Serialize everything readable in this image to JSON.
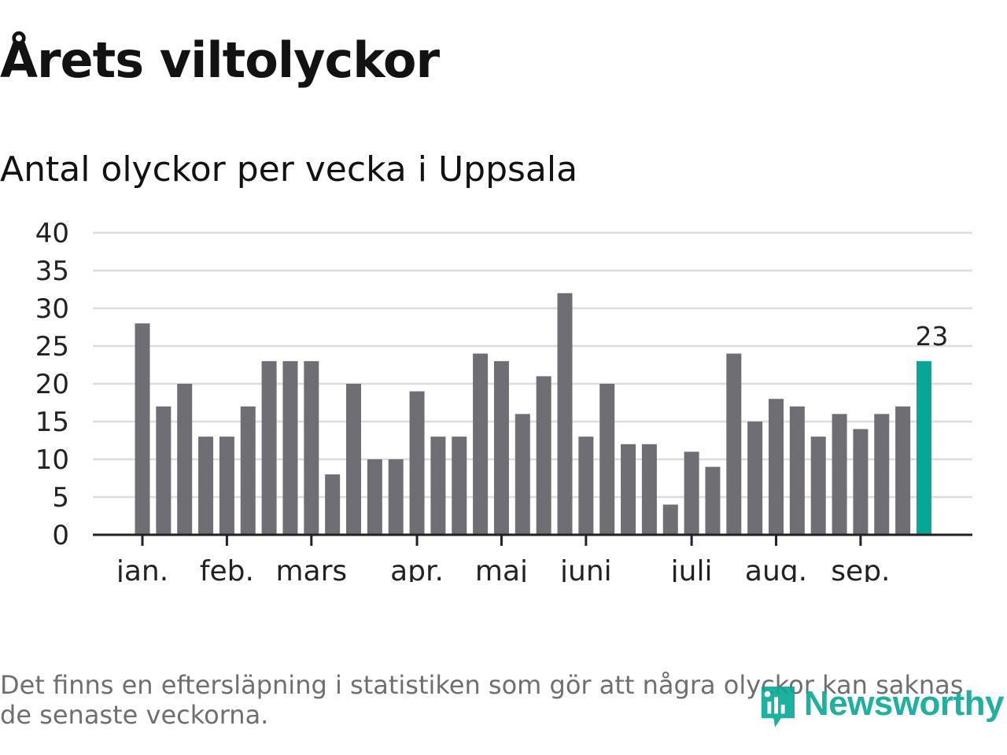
{
  "title": "Årets viltolyckor",
  "subtitle": "Antal olyckor per vecka i Uppsala",
  "footnote": "Det finns en eftersläpning i statistiken som gör att några olyckor kan saknas de senaste veckorna.",
  "logo_text": "Newsworthy",
  "colors": {
    "bar": "#6f6e74",
    "highlight": "#06a796",
    "grid": "#dcdcdc",
    "axis": "#222222",
    "text": "#222222"
  },
  "chart_data": {
    "type": "bar",
    "title": "Årets viltolyckor",
    "subtitle": "Antal olyckor per vecka i Uppsala",
    "xlabel": "",
    "ylabel": "",
    "ylim": [
      0,
      40
    ],
    "yticks": [
      0,
      5,
      10,
      15,
      20,
      25,
      30,
      35,
      40
    ],
    "grid": true,
    "values": [
      28,
      17,
      20,
      13,
      13,
      17,
      23,
      23,
      23,
      8,
      20,
      10,
      10,
      19,
      13,
      13,
      24,
      23,
      16,
      21,
      32,
      13,
      20,
      12,
      12,
      4,
      11,
      9,
      24,
      15,
      18,
      17,
      13,
      16,
      14,
      16,
      17,
      23
    ],
    "highlight_index": 37,
    "highlight_label": "23",
    "month_labels": [
      {
        "label": "jan.",
        "bar_index": 0
      },
      {
        "label": "feb.",
        "bar_index": 4
      },
      {
        "label": "mars",
        "bar_index": 8
      },
      {
        "label": "apr.",
        "bar_index": 13
      },
      {
        "label": "maj",
        "bar_index": 17
      },
      {
        "label": "juni",
        "bar_index": 21
      },
      {
        "label": "juli",
        "bar_index": 26
      },
      {
        "label": "aug.",
        "bar_index": 30
      },
      {
        "label": "sep.",
        "bar_index": 34
      }
    ]
  }
}
